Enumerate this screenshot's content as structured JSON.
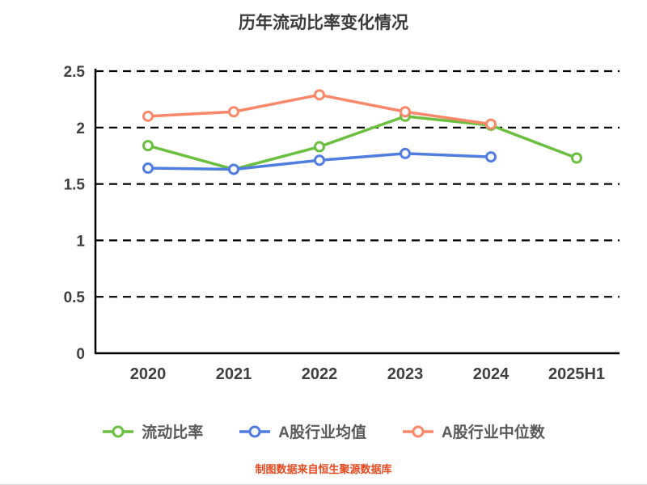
{
  "title": "历年流动比率变化情况",
  "footer": "制图数据来自恒生聚源数据库",
  "colors": {
    "series_current_ratio": "#6abf3f",
    "series_industry_mean": "#4f7de0",
    "series_industry_median": "#f9886a",
    "axis": "#000000",
    "tick_text": "#3f3f3f",
    "legend_text": "#595959",
    "footer_text": "#e8491e",
    "background": "#ffffff"
  },
  "chart_data": {
    "type": "line",
    "title": "历年流动比率变化情况",
    "categories": [
      "2020",
      "2021",
      "2022",
      "2023",
      "2024",
      "2025H1"
    ],
    "series": [
      {
        "name": "流动比率",
        "color": "#6abf3f",
        "values": [
          1.84,
          1.63,
          1.83,
          2.1,
          2.02,
          1.73
        ]
      },
      {
        "name": "A股行业均值",
        "color": "#4f7de0",
        "values": [
          1.64,
          1.63,
          1.71,
          1.77,
          1.74,
          null
        ]
      },
      {
        "name": "A股行业中位数",
        "color": "#f9886a",
        "values": [
          2.1,
          2.14,
          2.29,
          2.14,
          2.03,
          null
        ]
      }
    ],
    "xlabel": "",
    "ylabel": "",
    "ylim": [
      0,
      2.5
    ],
    "yticks": [
      0,
      0.5,
      1,
      1.5,
      2,
      2.5
    ],
    "grid": "horizontal-dashed",
    "legend_position": "bottom",
    "marker": "open-circle"
  }
}
